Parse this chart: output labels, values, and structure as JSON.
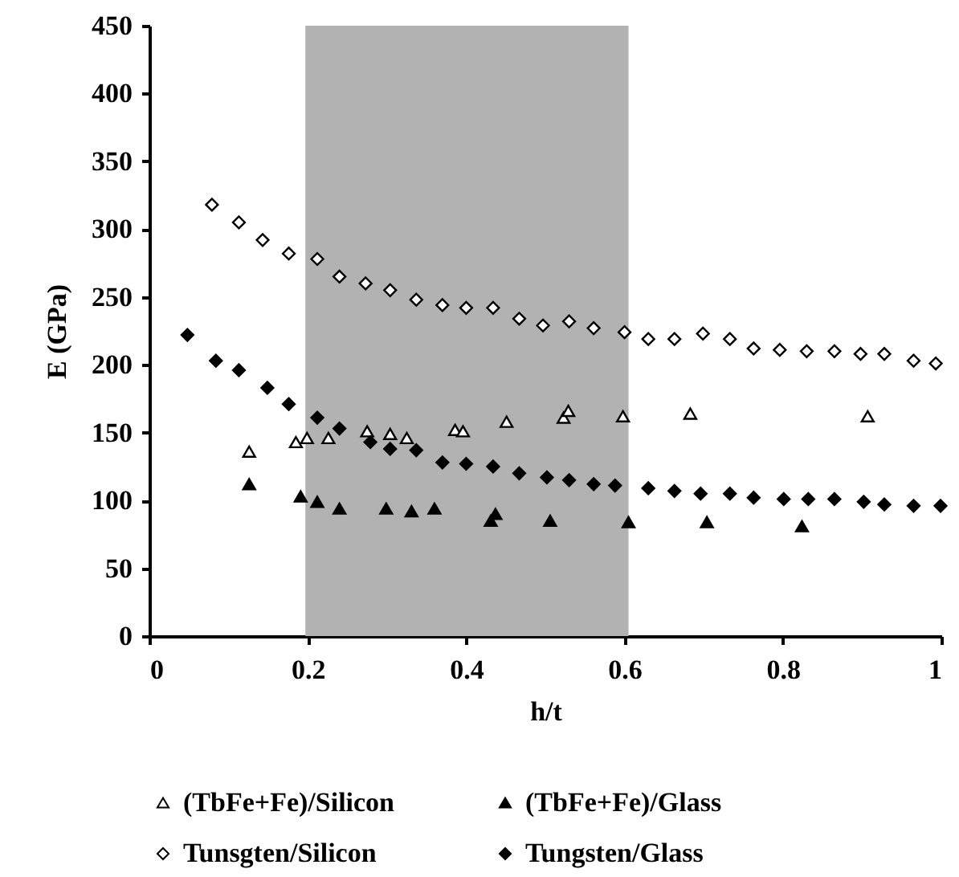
{
  "chart_data": {
    "type": "scatter",
    "xlabel": "h/t",
    "ylabel": "E (GPa)",
    "xlim": [
      0,
      1
    ],
    "xticks": [
      0,
      0.2,
      0.4,
      0.6,
      0.8,
      1
    ],
    "ylim": [
      0,
      450
    ],
    "yticks": [
      0,
      50,
      100,
      150,
      200,
      250,
      300,
      350,
      400,
      450
    ],
    "grid": false,
    "legend": "bottom",
    "bands": [
      {
        "axis": "x",
        "from": 0.197,
        "to": 0.605,
        "color": "#b2b2b2"
      }
    ],
    "series": [
      {
        "name": "(TbFe+Fe)/Silicon",
        "color": "#ffffff",
        "marker": "triangle",
        "x": [
          0.126,
          0.185,
          0.199,
          0.226,
          0.275,
          0.304,
          0.325,
          0.386,
          0.396,
          0.451,
          0.523,
          0.529,
          0.598,
          0.683,
          0.907
        ],
        "values": [
          136,
          143,
          146,
          146,
          151,
          149,
          146,
          152,
          151,
          158,
          161,
          166,
          162,
          164,
          162
        ]
      },
      {
        "name": "(TbFe+Fe)/Glass",
        "color": "#000000",
        "marker": "triangle",
        "x": [
          0.126,
          0.191,
          0.212,
          0.24,
          0.299,
          0.331,
          0.36,
          0.431,
          0.437,
          0.506,
          0.605,
          0.704,
          0.824
        ],
        "values": [
          112,
          103,
          99,
          94,
          94,
          92,
          94,
          85,
          90,
          85,
          84,
          84,
          81
        ]
      },
      {
        "name": "Tunsgten/Silicon",
        "color": "#ffffff",
        "marker": "diamond",
        "x": [
          0.079,
          0.113,
          0.143,
          0.176,
          0.212,
          0.24,
          0.273,
          0.304,
          0.337,
          0.37,
          0.4,
          0.434,
          0.467,
          0.497,
          0.53,
          0.561,
          0.6,
          0.63,
          0.663,
          0.699,
          0.733,
          0.763,
          0.796,
          0.83,
          0.865,
          0.898,
          0.928,
          0.965,
          0.993
        ],
        "values": [
          318,
          305,
          292,
          282,
          278,
          265,
          260,
          255,
          248,
          244,
          242,
          242,
          234,
          229,
          232,
          227,
          224,
          219,
          219,
          223,
          219,
          212,
          211,
          210,
          210,
          208,
          208,
          203,
          201
        ]
      },
      {
        "name": "Tungsten/Glass",
        "color": "#000000",
        "marker": "diamond",
        "x": [
          0.048,
          0.084,
          0.113,
          0.149,
          0.176,
          0.212,
          0.24,
          0.279,
          0.304,
          0.337,
          0.37,
          0.4,
          0.434,
          0.467,
          0.502,
          0.53,
          0.561,
          0.588,
          0.63,
          0.663,
          0.696,
          0.733,
          0.763,
          0.801,
          0.832,
          0.865,
          0.902,
          0.928,
          0.965,
          0.999
        ],
        "values": [
          222,
          203,
          196,
          183,
          171,
          161,
          153,
          143,
          138,
          137,
          128,
          127,
          125,
          120,
          117,
          115,
          112,
          111,
          109,
          107,
          105,
          105,
          102,
          101,
          101,
          101,
          99,
          97,
          96,
          96
        ]
      }
    ]
  }
}
